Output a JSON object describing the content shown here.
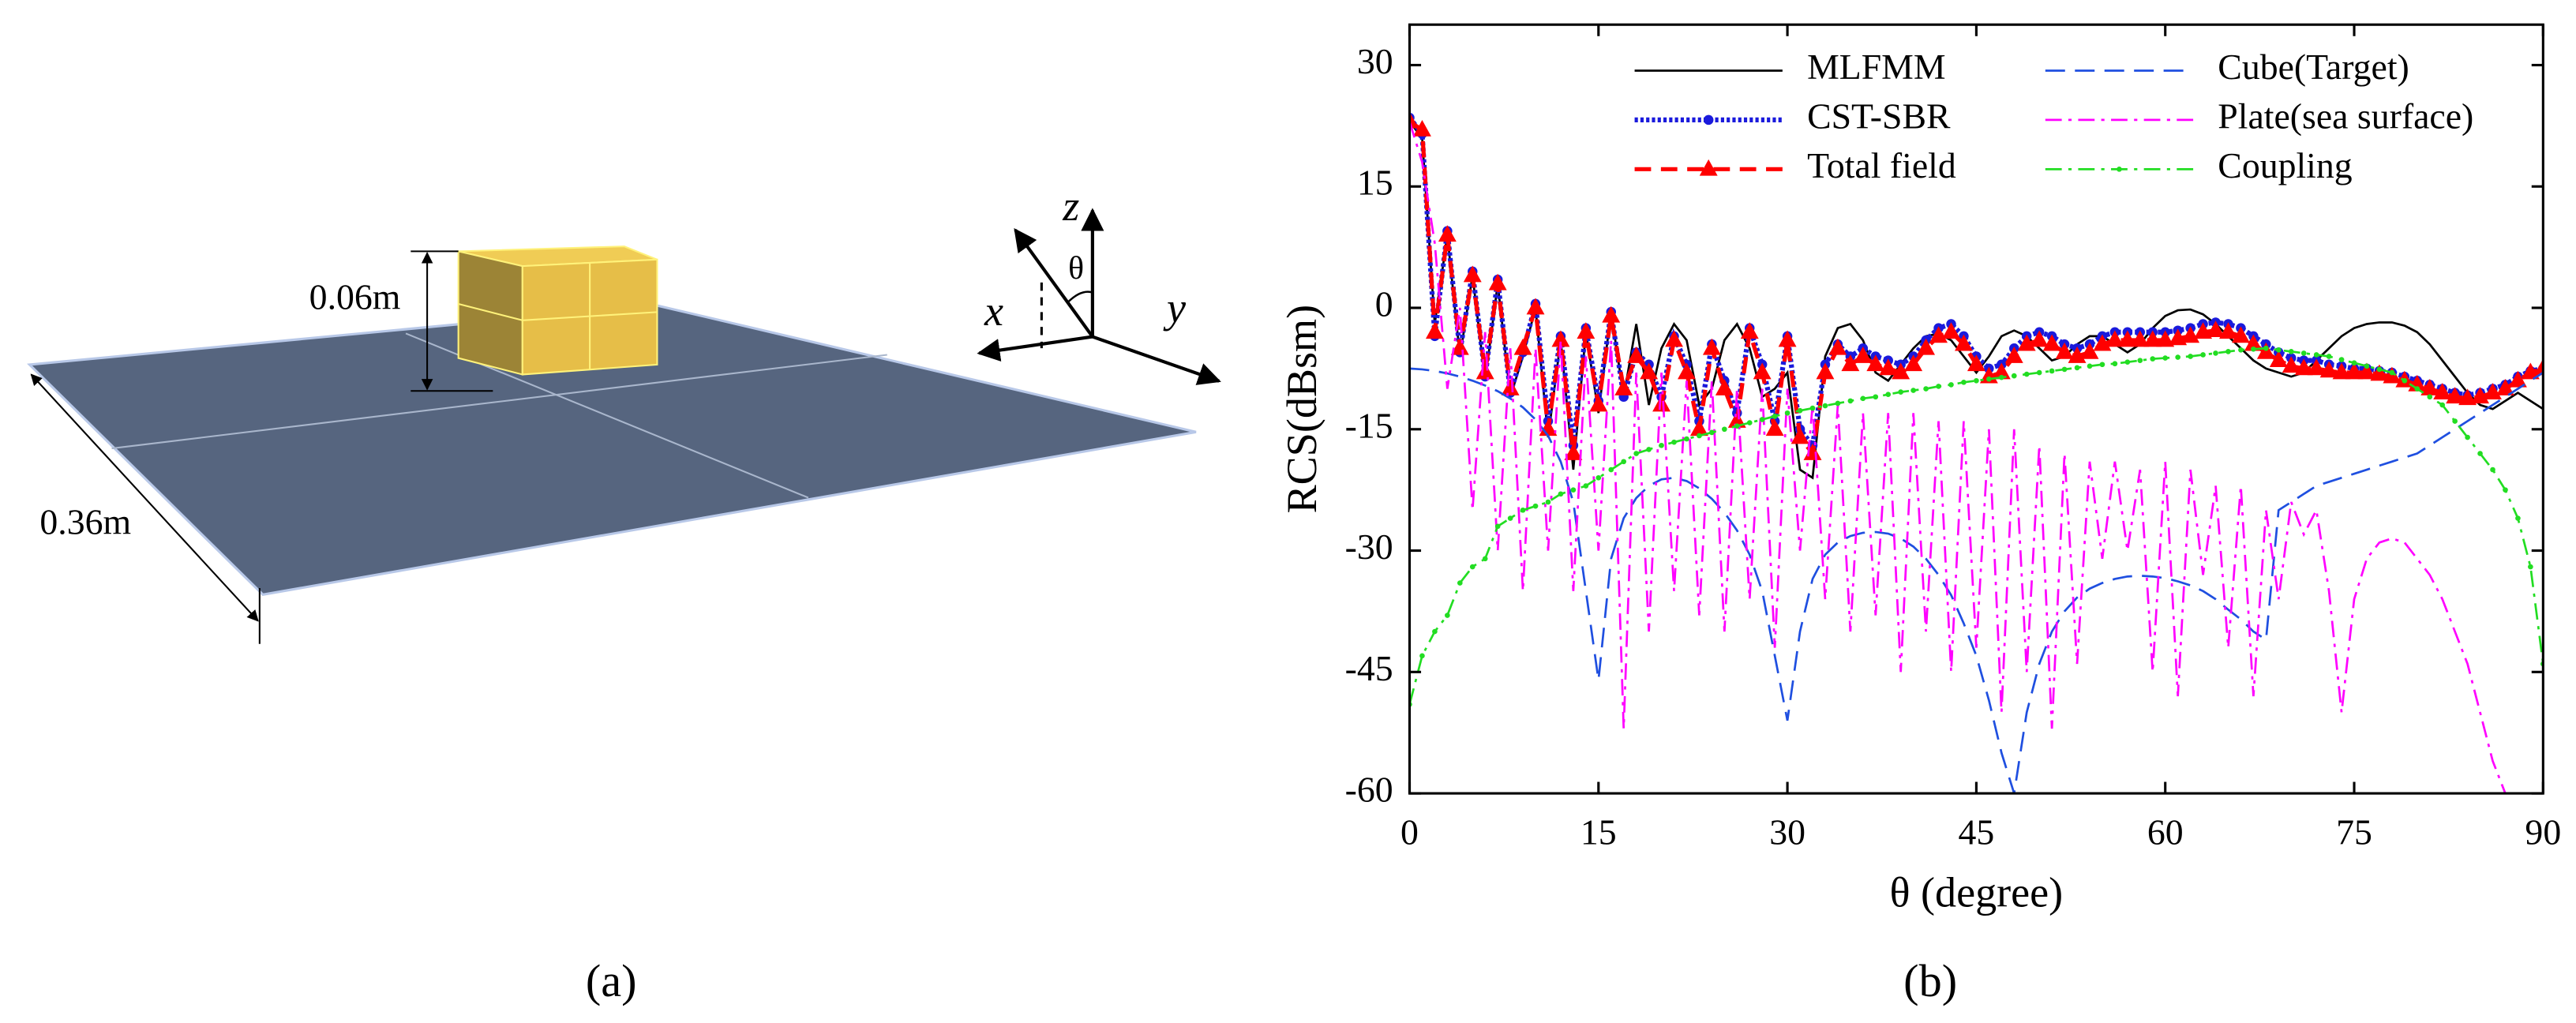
{
  "diagram": {
    "panel_label": "(a)",
    "height_label": "0.06m",
    "width_label": "0.36m",
    "axis_x": "x",
    "axis_y": "y",
    "axis_z": "z",
    "angle": "θ"
  },
  "chart_data": {
    "type": "line",
    "panel_label": "(b)",
    "xlabel": "θ (degree)",
    "ylabel": "RCS(dBsm)",
    "xlim": [
      0,
      90
    ],
    "xticks": [
      0,
      15,
      30,
      45,
      60,
      75,
      90
    ],
    "ylim": [
      -60,
      35
    ],
    "yticks": [
      -60,
      -45,
      -30,
      -15,
      0,
      15,
      30
    ],
    "grid": false,
    "x": [
      0,
      1,
      2,
      3,
      4,
      5,
      6,
      7,
      8,
      9,
      10,
      11,
      12,
      13,
      14,
      15,
      16,
      17,
      18,
      19,
      20,
      21,
      22,
      23,
      24,
      25,
      26,
      27,
      28,
      29,
      30,
      31,
      32,
      33,
      34,
      35,
      36,
      37,
      38,
      39,
      40,
      41,
      42,
      43,
      44,
      45,
      46,
      47,
      48,
      49,
      50,
      51,
      52,
      53,
      54,
      55,
      56,
      57,
      58,
      59,
      60,
      61,
      62,
      63,
      64,
      65,
      66,
      67,
      68,
      69,
      70,
      71,
      72,
      73,
      74,
      75,
      76,
      77,
      78,
      79,
      80,
      81,
      82,
      83,
      84,
      85,
      86,
      87,
      88,
      89,
      90
    ],
    "series": [
      {
        "name": "MLFMM",
        "color": "#000000",
        "style": "solid",
        "values": [
          23,
          21,
          -2,
          9,
          -6,
          4,
          -9,
          3,
          -11,
          -6,
          0,
          -16,
          -4,
          -20,
          -3,
          -13,
          -0.5,
          -11,
          -2,
          -12,
          -5,
          -2,
          -4,
          -12,
          -10,
          -4,
          -2,
          -5,
          -11,
          -10,
          -8,
          -20,
          -21,
          -6,
          -2.5,
          -2,
          -4,
          -8,
          -9,
          -7,
          -5,
          -3.5,
          -3.2,
          -4,
          -6,
          -8,
          -6,
          -3.5,
          -2.8,
          -3.5,
          -5,
          -6.5,
          -6,
          -4.5,
          -3.5,
          -3.5,
          -4.5,
          -5.5,
          -4.5,
          -2.5,
          -1,
          -0.3,
          -0.2,
          -0.8,
          -2,
          -3.5,
          -5,
          -6.5,
          -7.5,
          -8,
          -8.5,
          -8,
          -6.5,
          -5,
          -3.5,
          -2.5,
          -2,
          -1.8,
          -1.8,
          -2.2,
          -3,
          -4.5,
          -6.5,
          -8.5,
          -10.5,
          -12,
          -12.5,
          -11.5,
          -10.5,
          -11.5,
          -12.5
        ]
      },
      {
        "name": "CST-SBR",
        "color": "#1a1adc",
        "style": "dotted",
        "marker": "dot",
        "values": [
          23.5,
          21.5,
          -3.5,
          9.5,
          -5.5,
          4.5,
          -8.5,
          3.5,
          -10.5,
          -5.5,
          0.5,
          -14,
          -3.5,
          -17,
          -2.5,
          -11.5,
          -0.5,
          -11,
          -5.5,
          -7,
          -11,
          -3.5,
          -7,
          -14,
          -4.5,
          -9,
          -13,
          -2.5,
          -7,
          -14,
          -3.5,
          -15,
          -17,
          -7,
          -4.5,
          -6,
          -5,
          -6,
          -6.5,
          -7,
          -6,
          -4,
          -2.5,
          -2,
          -3.5,
          -6,
          -7.5,
          -7,
          -5,
          -3.5,
          -3,
          -3.5,
          -4.5,
          -5,
          -4.5,
          -3.5,
          -3,
          -3,
          -3,
          -3,
          -3,
          -2.8,
          -2.5,
          -2,
          -1.8,
          -2,
          -2.5,
          -3.5,
          -4.5,
          -5.5,
          -6.2,
          -6.5,
          -6.5,
          -7,
          -7.2,
          -7.5,
          -7.5,
          -7.8,
          -8,
          -8.5,
          -9,
          -9.5,
          -10,
          -10.5,
          -10.8,
          -10.5,
          -10,
          -9.5,
          -8.5,
          -7.8,
          -7.5
        ]
      },
      {
        "name": "Total field",
        "color": "#ff0000",
        "style": "dashed",
        "marker": "triangle",
        "values": [
          23,
          22,
          -3,
          9,
          -5,
          4,
          -8,
          3,
          -10,
          -5,
          0,
          -15,
          -4,
          -18,
          -3,
          -12,
          -1,
          -10,
          -6,
          -8,
          -12,
          -4,
          -8,
          -15,
          -5,
          -10,
          -14,
          -3,
          -8,
          -15,
          -4,
          -16,
          -18,
          -8,
          -5,
          -7,
          -6,
          -7,
          -7.5,
          -8,
          -7,
          -5,
          -3.5,
          -3,
          -4.5,
          -7,
          -8.5,
          -8,
          -6,
          -4.5,
          -4,
          -4.5,
          -5.5,
          -6,
          -5.5,
          -4.5,
          -4,
          -4,
          -4,
          -4,
          -4,
          -3.8,
          -3.5,
          -3,
          -2.8,
          -3,
          -3.5,
          -4.5,
          -5.5,
          -6.5,
          -7.2,
          -7.5,
          -7.5,
          -7.8,
          -8,
          -8,
          -8,
          -8.2,
          -8.5,
          -9,
          -9.5,
          -10,
          -10.5,
          -11,
          -11.2,
          -11,
          -10.5,
          -10,
          -9,
          -8,
          -7.5
        ]
      },
      {
        "name": "Cube(Target)",
        "color": "#1f4fe0",
        "style": "longdash",
        "values": [
          -7.5,
          -7.6,
          -7.8,
          -8.1,
          -8.5,
          -9,
          -9.6,
          -10.3,
          -11.2,
          -12.3,
          -13.8,
          -15.8,
          -19,
          -24,
          -35,
          -46,
          -31,
          -26,
          -23.5,
          -22,
          -21.2,
          -21,
          -21.4,
          -22.3,
          -23.6,
          -25.3,
          -27.5,
          -30.5,
          -35,
          -43,
          -51,
          -40,
          -33.5,
          -30.5,
          -29,
          -28.2,
          -27.8,
          -27.7,
          -27.9,
          -28.5,
          -29.5,
          -31,
          -33,
          -35.5,
          -39,
          -43,
          -48.5,
          -55,
          -60,
          -50,
          -44,
          -40,
          -37.5,
          -35.8,
          -34.7,
          -34,
          -33.5,
          -33.2,
          -33.1,
          -33.2,
          -33.4,
          -33.8,
          -34.3,
          -35,
          -36,
          -37.3,
          -38.5,
          -40,
          -41,
          -25,
          -24,
          -23,
          -22,
          -21.5,
          -21,
          -20.5,
          -20,
          -19.5,
          -19,
          -18.5,
          -18,
          -17,
          -16,
          -15,
          -14,
          -13,
          -12,
          -11,
          -10,
          -9,
          -8
        ]
      },
      {
        "name": "Plate(sea surface)",
        "color": "#ff00ff",
        "style": "dashdot",
        "values": [
          23,
          18,
          8,
          -10,
          0,
          -25,
          -3,
          -30,
          -5,
          -35,
          -5,
          -30,
          -4,
          -35,
          -6,
          -30,
          -4,
          -52,
          -8,
          -40,
          -8,
          -35,
          -9,
          -38,
          -9,
          -40,
          -10,
          -36,
          -10,
          -42,
          -10,
          -30,
          -12,
          -36,
          -12,
          -40,
          -13,
          -38,
          -13,
          -45,
          -13,
          -40,
          -14,
          -45,
          -14,
          -42,
          -15,
          -50,
          -15,
          -45,
          -17,
          -52,
          -18,
          -44,
          -19,
          -31,
          -19,
          -30,
          -20,
          -45,
          -19,
          -48,
          -20,
          -33,
          -22,
          -42,
          -22,
          -48,
          -25,
          -36,
          -24,
          -28,
          -25,
          -35,
          -50,
          -36,
          -31,
          -29,
          -28.5,
          -29,
          -31,
          -33,
          -36,
          -40,
          -44,
          -50,
          -56,
          -60,
          null,
          null,
          null
        ]
      },
      {
        "name": "Coupling",
        "color": "#22dd22",
        "style": "dashdot",
        "marker": "smalldot",
        "values": [
          -49,
          -43,
          -40,
          -38,
          -34,
          -32,
          -31,
          -27,
          -26,
          -25,
          -24.5,
          -24,
          -23,
          -22.5,
          -22,
          -21,
          -20,
          -19,
          -18,
          -17.5,
          -17,
          -16.6,
          -16.2,
          -15.8,
          -15.4,
          -15,
          -14.6,
          -14.2,
          -13.8,
          -13.4,
          -13,
          -12.7,
          -12.4,
          -12.1,
          -11.8,
          -11.5,
          -11.2,
          -11,
          -10.7,
          -10.4,
          -10.2,
          -10,
          -9.7,
          -9.5,
          -9.2,
          -9,
          -8.8,
          -8.6,
          -8.4,
          -8.2,
          -8,
          -7.8,
          -7.6,
          -7.4,
          -7.2,
          -7,
          -6.9,
          -6.7,
          -6.5,
          -6.3,
          -6.2,
          -6.1,
          -6,
          -5.8,
          -5.6,
          -5.4,
          -5.2,
          -5.1,
          -5,
          -5.2,
          -5.4,
          -5.6,
          -5.8,
          -6,
          -6.4,
          -6.8,
          -7.2,
          -7.6,
          -8,
          -9,
          -10,
          -11,
          -12,
          -14,
          -16,
          -18,
          -20,
          -22.5,
          -26,
          -32,
          -44
        ]
      }
    ]
  }
}
